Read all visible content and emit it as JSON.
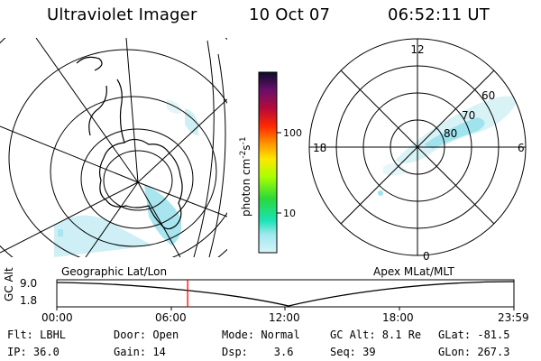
{
  "header": {
    "title": "Ultraviolet Imager",
    "date": "10 Oct 07",
    "time": "06:52:11 UT"
  },
  "left_panel": {
    "label": "Geographic Lat/Lon"
  },
  "right_panel": {
    "label": "Apex MLat/MLT",
    "mlt_labels": {
      "top": "12",
      "left": "18",
      "right": "6",
      "bottom": "0"
    },
    "lat_labels": [
      "60",
      "70",
      "80"
    ]
  },
  "colorbar": {
    "unit_text": "photon cm",
    "unit_sup1": "-2",
    "unit_s": "s",
    "unit_sup2": "-1",
    "ticks": [
      "100",
      "10"
    ]
  },
  "timeline": {
    "ylabel": "GC Alt",
    "y_ticks": [
      "9.0",
      "1.8"
    ],
    "x_ticks": [
      "00:00",
      "06:00",
      "12:00",
      "18:00",
      "23:59"
    ],
    "marker_time_hours": 6.87,
    "marker_color": "#ff0000"
  },
  "info": {
    "row1": [
      "Flt: LBHL",
      "Door: Open",
      "Mode: Normal",
      "GC Alt: 8.1 Re",
      "GLat: -81.5"
    ],
    "row2": [
      "IP: 36.0",
      "Gain: 14",
      "Dsp:    3.6",
      "Seq: 39",
      "GLon: 267.3"
    ]
  },
  "colors": {
    "aurora": "#9fe3ee",
    "aurora_dim": "#d8f2f6",
    "colorbar_stops": [
      "#0b0b2a",
      "#6b0f6a",
      "#b50a3a",
      "#ff2a00",
      "#ff9900",
      "#ffe600",
      "#a8ff00",
      "#2bd83a",
      "#18e3b5",
      "#b9f0f7"
    ]
  }
}
